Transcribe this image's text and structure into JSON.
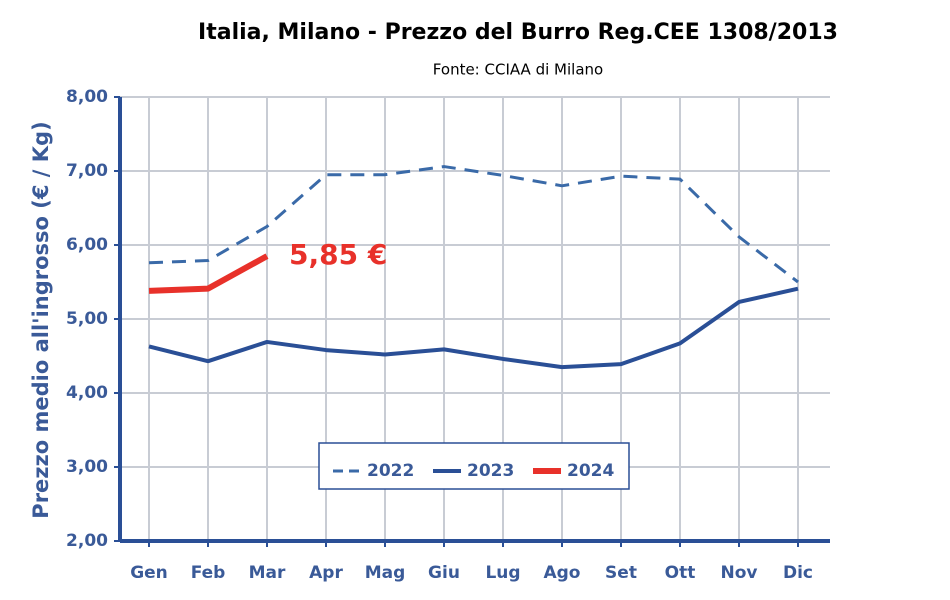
{
  "chart_data": {
    "type": "line",
    "title": "Italia, Milano - Prezzo del Burro Reg.CEE 1308/2013",
    "subtitle": "Fonte: CCIAA di Milano",
    "y_label": "Prezzo medio all'ingrosso (€ / Kg)",
    "annotation": "5,85 €",
    "categories": [
      "Gen",
      "Feb",
      "Mar",
      "Apr",
      "Mag",
      "Giu",
      "Lug",
      "Ago",
      "Set",
      "Ott",
      "Nov",
      "Dic"
    ],
    "series": [
      {
        "name": "2022",
        "color": "#3a6aa8",
        "dashed": true,
        "values": [
          5.76,
          5.79,
          6.25,
          6.95,
          6.95,
          7.06,
          6.94,
          6.8,
          6.93,
          6.89,
          6.11,
          5.5
        ]
      },
      {
        "name": "2023",
        "color": "#2a4f96",
        "dashed": false,
        "values": [
          4.63,
          4.43,
          4.69,
          4.58,
          4.52,
          4.59,
          4.46,
          4.35,
          4.39,
          4.67,
          5.23,
          5.41
        ]
      },
      {
        "name": "2024",
        "color": "#e8312a",
        "dashed": false,
        "values": [
          5.38,
          5.41,
          5.85,
          null,
          null,
          null,
          null,
          null,
          null,
          null,
          null,
          null
        ]
      }
    ],
    "ylim": [
      2,
      8
    ],
    "yticks": [
      {
        "value": 2,
        "label": "2,00"
      },
      {
        "value": 3,
        "label": "3,00"
      },
      {
        "value": 4,
        "label": "4,00"
      },
      {
        "value": 5,
        "label": "5,00"
      },
      {
        "value": 6,
        "label": "6,00"
      },
      {
        "value": 7,
        "label": "7,00"
      },
      {
        "value": 8,
        "label": "8,00"
      }
    ],
    "grid": true
  }
}
